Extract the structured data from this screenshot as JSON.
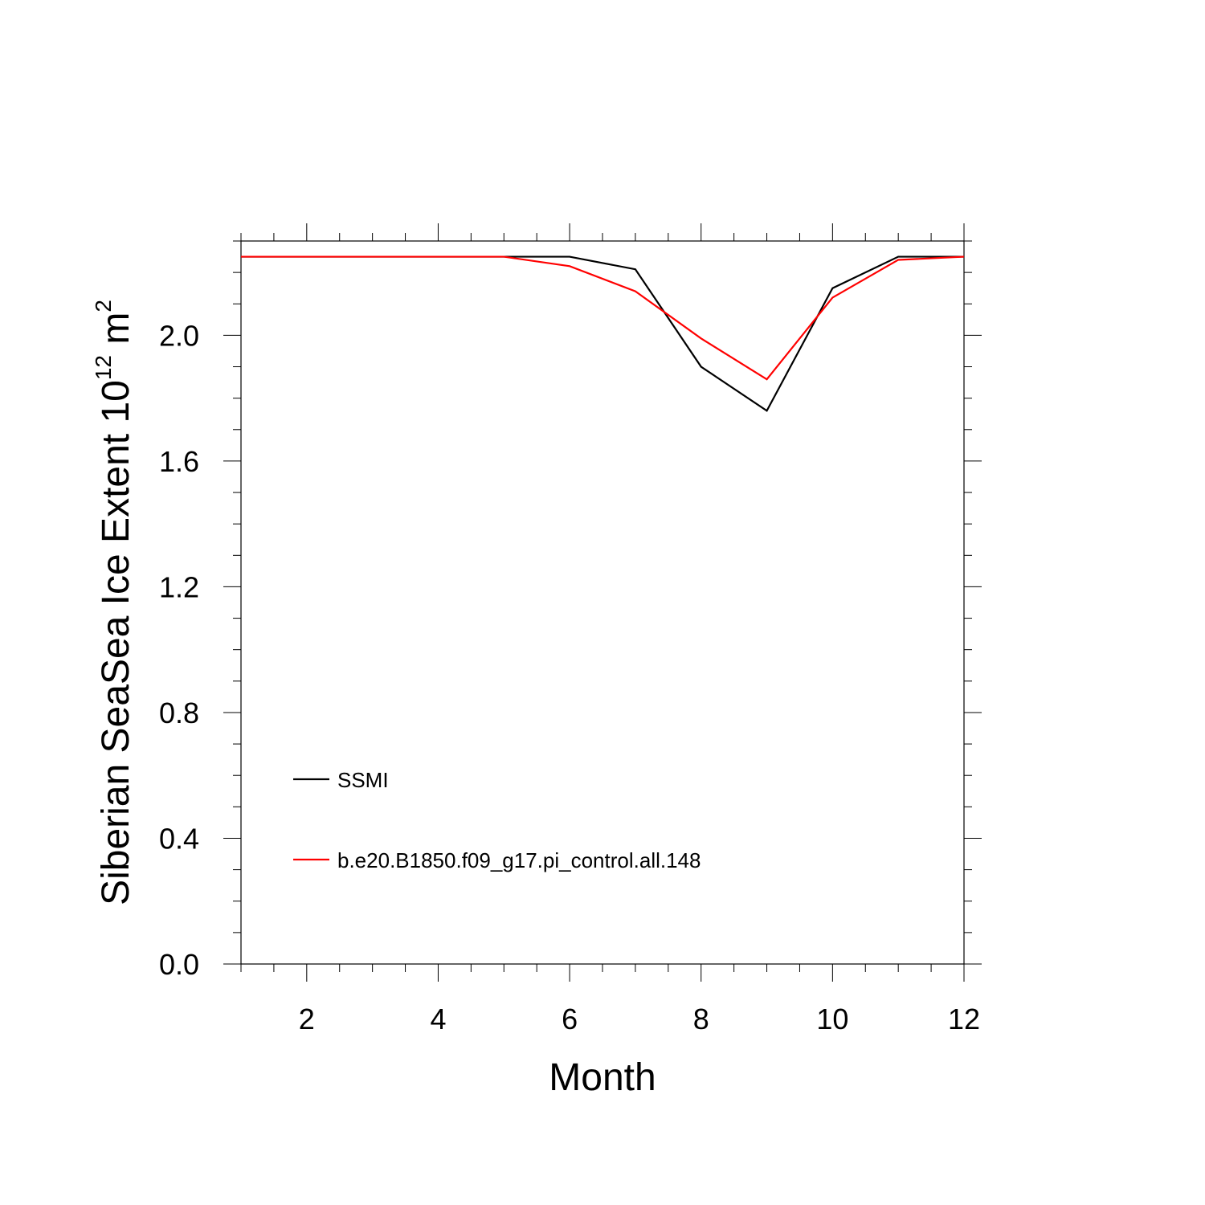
{
  "chart_data": {
    "type": "line",
    "xlabel": "Month",
    "ylabel_main": "Siberian SeaSea Ice Extent 10",
    "ylabel_exp": "12",
    "ylabel_unit": " m",
    "ylabel_unit_exp": "2",
    "xlim": [
      1,
      12
    ],
    "ylim": [
      0.0,
      2.3
    ],
    "x_ticks": [
      2,
      4,
      6,
      8,
      10,
      12
    ],
    "x_tick_labels": [
      "2",
      "4",
      "6",
      "8",
      "10",
      "12"
    ],
    "y_ticks": [
      0.0,
      0.4,
      0.8,
      1.2,
      1.6,
      2.0
    ],
    "y_tick_labels": [
      "0.0",
      "0.4",
      "0.8",
      "1.2",
      "1.6",
      "2.0"
    ],
    "grid": false,
    "legend_position": "bottom-left",
    "x": [
      1,
      2,
      3,
      4,
      5,
      6,
      7,
      8,
      9,
      10,
      11,
      12
    ],
    "series": [
      {
        "name": "SSMI",
        "color": "#000000",
        "values": [
          2.25,
          2.25,
          2.25,
          2.25,
          2.25,
          2.25,
          2.21,
          1.9,
          1.76,
          2.15,
          2.25,
          2.25
        ]
      },
      {
        "name": "b.e20.B1850.f09_g17.pi_control.all.148",
        "color": "#ff0000",
        "values": [
          2.25,
          2.25,
          2.25,
          2.25,
          2.25,
          2.22,
          2.14,
          1.99,
          1.86,
          2.12,
          2.24,
          2.25
        ]
      }
    ]
  }
}
